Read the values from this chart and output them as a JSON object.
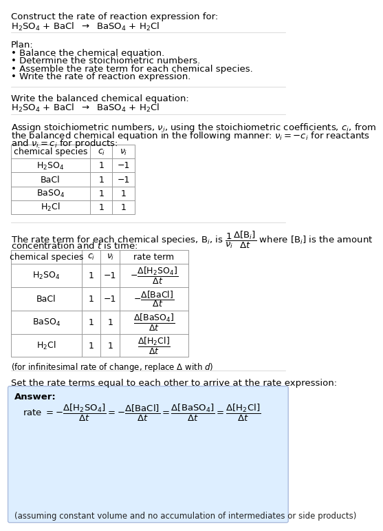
{
  "bg_color": "#ffffff",
  "text_color": "#000000",
  "answer_bg": "#ddeeff",
  "font_size_body": 9.5,
  "font_size_table": 9.0,
  "font_size_small": 8.5,
  "title_text": "Construct the rate of reaction expression for:",
  "reaction_equation": "$\\mathrm{H_2SO_4}$ + BaCl  $\\rightarrow$  $\\mathrm{BaSO_4}$ + $\\mathrm{H_2}$Cl",
  "plan_header": "Plan:",
  "plan_items": [
    "• Balance the chemical equation.",
    "• Determine the stoichiometric numbers.",
    "• Assemble the rate term for each chemical species.",
    "• Write the rate of reaction expression."
  ],
  "balanced_header": "Write the balanced chemical equation:",
  "balanced_eq": "$\\mathrm{H_2SO_4}$ + BaCl  $\\rightarrow$  $\\mathrm{BaSO_4}$ + $\\mathrm{H_2}$Cl",
  "stoich_line1": "Assign stoichiometric numbers, $\\nu_i$, using the stoichiometric coefficients, $c_i$, from",
  "stoich_line2": "the balanced chemical equation in the following manner: $\\nu_i = -c_i$ for reactants",
  "stoich_line3": "and $\\nu_i = c_i$ for products:",
  "table1_headers": [
    "chemical species",
    "$c_i$",
    "$\\nu_i$"
  ],
  "table1_rows": [
    [
      "$\\mathrm{H_2SO_4}$",
      "1",
      "−1"
    ],
    [
      "BaCl",
      "1",
      "−1"
    ],
    [
      "$\\mathrm{BaSO_4}$",
      "1",
      "1"
    ],
    [
      "$\\mathrm{H_2}$Cl",
      "1",
      "1"
    ]
  ],
  "rate_intro1": "The rate term for each chemical species, B$_i$, is $\\dfrac{1}{\\nu_i}\\dfrac{\\Delta[\\mathrm{B}_i]}{\\Delta t}$ where [B$_i$] is the amount",
  "rate_intro2": "concentration and $t$ is time:",
  "table2_headers": [
    "chemical species",
    "$c_i$",
    "$\\nu_i$",
    "rate term"
  ],
  "table2_rows": [
    [
      "$\\mathrm{H_2SO_4}$",
      "1",
      "−1",
      "$-\\dfrac{\\Delta[\\mathrm{H_2SO_4}]}{\\Delta t}$"
    ],
    [
      "BaCl",
      "1",
      "−1",
      "$-\\dfrac{\\Delta[\\mathrm{BaCl}]}{\\Delta t}$"
    ],
    [
      "$\\mathrm{BaSO_4}$",
      "1",
      "1",
      "$\\dfrac{\\Delta[\\mathrm{BaSO_4}]}{\\Delta t}$"
    ],
    [
      "$\\mathrm{H_2}$Cl",
      "1",
      "1",
      "$\\dfrac{\\Delta[\\mathrm{H_2Cl}]}{\\Delta t}$"
    ]
  ],
  "infinitesimal_note": "(for infinitesimal rate of change, replace Δ with $d$)",
  "set_rate_text": "Set the rate terms equal to each other to arrive at the rate expression:",
  "answer_label": "Answer:",
  "answer_note": "(assuming constant volume and no accumulation of intermediates or side products)"
}
